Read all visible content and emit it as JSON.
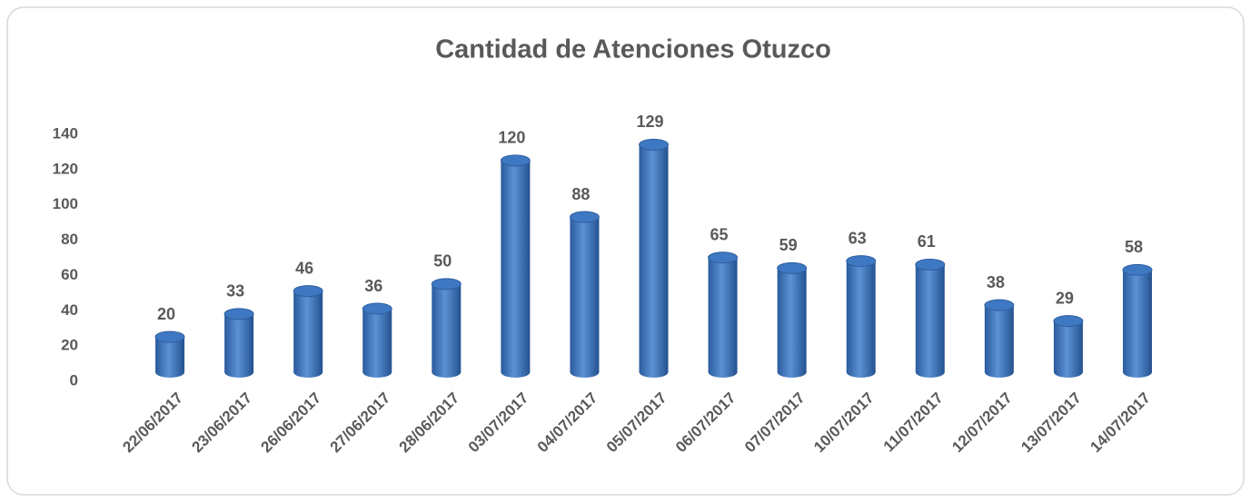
{
  "chart_data": {
    "type": "bar",
    "title": "Cantidad de Atenciones Otuzco",
    "categories": [
      "22/06/2017",
      "23/06/2017",
      "26/06/2017",
      "27/06/2017",
      "28/06/2017",
      "03/07/2017",
      "04/07/2017",
      "05/07/2017",
      "06/07/2017",
      "07/07/2017",
      "10/07/2017",
      "11/07/2017",
      "12/07/2017",
      "13/07/2017",
      "14/07/2017"
    ],
    "values": [
      20,
      33,
      46,
      36,
      50,
      120,
      88,
      129,
      65,
      59,
      63,
      61,
      38,
      29,
      58
    ],
    "color": "#3f78c2",
    "ylim": [
      0,
      140
    ],
    "yticks": [
      0,
      20,
      40,
      60,
      80,
      100,
      120,
      140
    ],
    "grid": false
  }
}
